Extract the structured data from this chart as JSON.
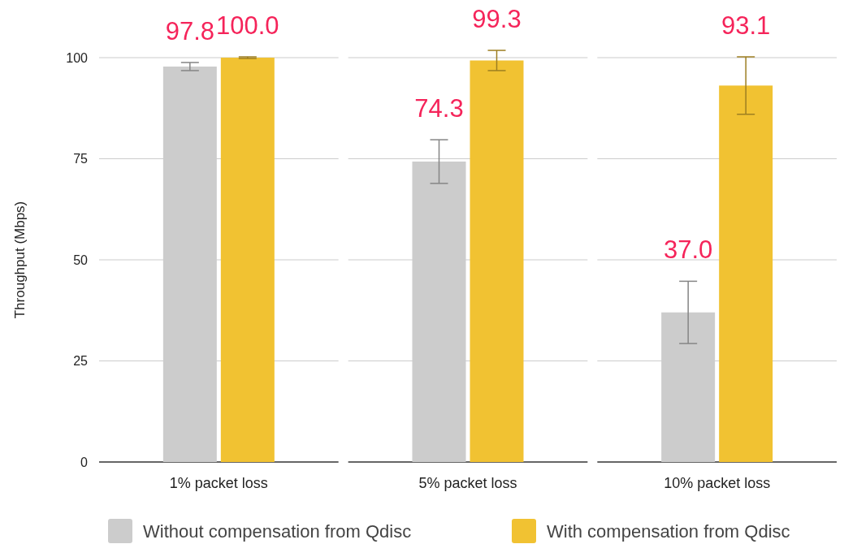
{
  "chart_data": {
    "type": "bar",
    "ylabel": "Throughput (Mbps)",
    "categories": [
      "1% packet loss",
      "5% packet loss",
      "10% packet loss"
    ],
    "series": [
      {
        "name": "Without compensation from Qdisc",
        "color": "#cccccc",
        "values": [
          97.8,
          74.3,
          37.0
        ],
        "errors": [
          1,
          5.4,
          7.7
        ],
        "value_labels": [
          "97.8",
          "74.3",
          "37.0"
        ]
      },
      {
        "name": "With compensation from Qdisc",
        "color": "#f1c232",
        "values": [
          100.0,
          99.3,
          93.1
        ],
        "errors": [
          0.2,
          2.5,
          7.1
        ],
        "value_labels": [
          "100.0",
          "99.3",
          "93.1"
        ]
      }
    ],
    "ylim": [
      0,
      100
    ],
    "yticks": [
      0,
      25,
      50,
      75,
      100
    ],
    "grid": "y",
    "legend": "bottom"
  }
}
